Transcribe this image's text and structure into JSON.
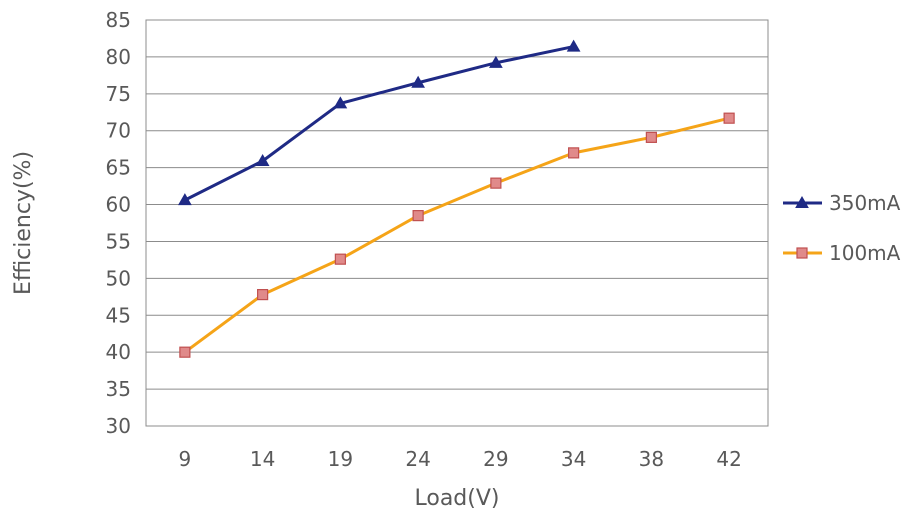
{
  "chart_data": {
    "type": "line",
    "categories": [
      "9",
      "14",
      "19",
      "24",
      "29",
      "34",
      "38",
      "42"
    ],
    "series": [
      {
        "name": "350mA",
        "values": [
          60.6,
          65.9,
          73.7,
          76.5,
          79.2,
          81.4,
          null,
          null
        ],
        "color": "#1f2a85",
        "marker": "triangle"
      },
      {
        "name": "100mA",
        "values": [
          40.0,
          47.8,
          52.6,
          58.5,
          62.9,
          67.0,
          69.1,
          71.7
        ],
        "color": "#f5a418",
        "marker": "square",
        "marker_fill": "#e08a8a",
        "marker_stroke": "#c05050"
      }
    ],
    "xlabel": "Load(V)",
    "ylabel": "Efficiency(%)",
    "ylim": [
      30,
      85
    ],
    "ystep": 5,
    "yticks": [
      "30",
      "35",
      "40",
      "45",
      "50",
      "55",
      "60",
      "65",
      "70",
      "75",
      "80",
      "85"
    ],
    "grid": "horizontal",
    "legend": "right"
  }
}
